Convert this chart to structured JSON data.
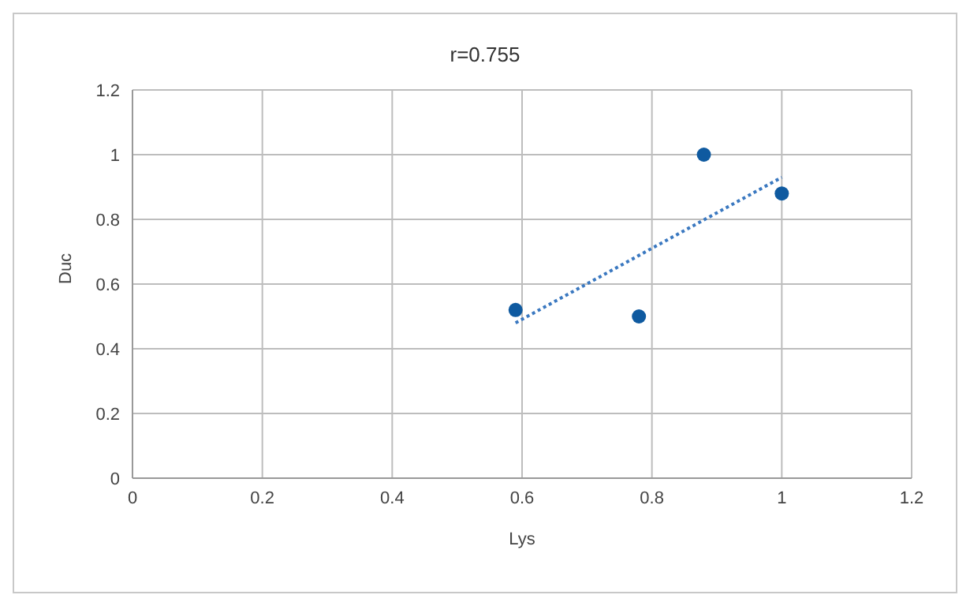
{
  "chart_data": {
    "type": "scatter",
    "title": "r=0.755",
    "xlabel": "Lys",
    "ylabel": "Duc",
    "xlim": [
      0,
      1.2
    ],
    "xticks": [
      0,
      0.2,
      0.4,
      0.6,
      0.8,
      1,
      1.2
    ],
    "ylim": [
      0,
      1.2
    ],
    "yticks": [
      0,
      0.2,
      0.4,
      0.6,
      0.8,
      1,
      1.2
    ],
    "grid": true,
    "legend": false,
    "marker": "circle",
    "series": [
      {
        "color": "#0f5aa0",
        "x": [
          0.59,
          0.78,
          0.88,
          1.0
        ],
        "values": [
          0.52,
          0.5,
          1.0,
          0.88
        ]
      },
      {
        "type": "line",
        "color": "#3a78c0",
        "line_style": "dotted",
        "marker": "none",
        "x": [
          0.59,
          1.0
        ],
        "values": [
          0.48,
          0.93
        ]
      }
    ]
  }
}
